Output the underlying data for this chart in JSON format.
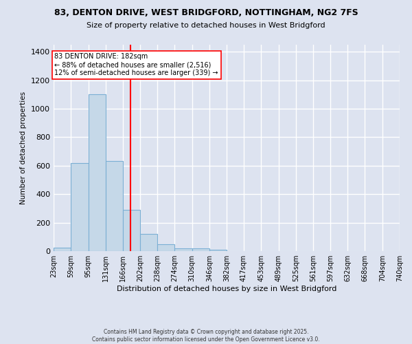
{
  "title1": "83, DENTON DRIVE, WEST BRIDGFORD, NOTTINGHAM, NG2 7FS",
  "title2": "Size of property relative to detached houses in West Bridgford",
  "xlabel": "Distribution of detached houses by size in West Bridgford",
  "ylabel": "Number of detached properties",
  "bar_values": [
    25,
    620,
    1100,
    635,
    290,
    120,
    50,
    20,
    18,
    12,
    0,
    0,
    0,
    0,
    0,
    0,
    0,
    0,
    0,
    0
  ],
  "bin_edges": [
    23,
    59,
    95,
    131,
    166,
    202,
    238,
    274,
    310,
    346,
    382,
    417,
    453,
    489,
    525,
    561,
    597,
    632,
    668,
    704,
    740
  ],
  "bin_labels": [
    "23sqm",
    "59sqm",
    "95sqm",
    "131sqm",
    "166sqm",
    "202sqm",
    "238sqm",
    "274sqm",
    "310sqm",
    "346sqm",
    "382sqm",
    "417sqm",
    "453sqm",
    "489sqm",
    "525sqm",
    "561sqm",
    "597sqm",
    "632sqm",
    "668sqm",
    "704sqm",
    "740sqm"
  ],
  "bar_color": "#c5d8e8",
  "bar_edge_color": "#7bafd4",
  "bar_alpha": 1.0,
  "vline_x": 182,
  "vline_color": "red",
  "annotation_text": "83 DENTON DRIVE: 182sqm\n← 88% of detached houses are smaller (2,516)\n12% of semi-detached houses are larger (339) →",
  "annotation_box_color": "white",
  "annotation_box_edge": "red",
  "ylim": [
    0,
    1450
  ],
  "yticks": [
    0,
    200,
    400,
    600,
    800,
    1000,
    1200,
    1400
  ],
  "bg_color": "#dde3f0",
  "grid_color": "white",
  "footnote": "Contains HM Land Registry data © Crown copyright and database right 2025.\nContains public sector information licensed under the Open Government Licence v3.0."
}
